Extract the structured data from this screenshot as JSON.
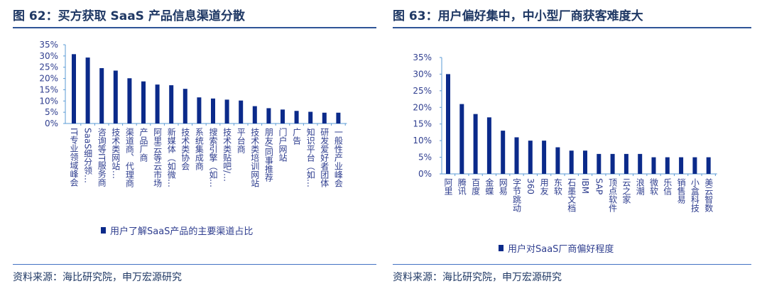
{
  "chart_data": [
    {
      "type": "bar",
      "title": "图 62：买方获取 SaaS 产品信息渠道分散",
      "categories": [
        "IT专业领域峰会",
        "SaaS细分领…",
        "咨询等IT服务商",
        "技术类网站…",
        "渠道商、代理商",
        "产品厂商",
        "阿里云等云市场",
        "新媒体（如微…",
        "技术类协会",
        "系统集成商",
        "搜索引擎（如…",
        "技术类贴吧/…",
        "平台商",
        "技术类培训网站",
        "朋友/同事推荐",
        "门户网站",
        "广告",
        "知识平台（如…",
        "研发爱好者团体",
        "一般性产业峰会"
      ],
      "series": [
        {
          "name": "用户了解SaaS产品的主要渠道占比",
          "values": [
            30.8,
            29.3,
            24.6,
            23.5,
            20.1,
            18.7,
            17.3,
            17.0,
            15.4,
            11.6,
            11.1,
            10.6,
            10.2,
            7.7,
            6.8,
            6.2,
            5.6,
            5.2,
            4.8,
            4.8
          ]
        }
      ],
      "yticks": [
        "0%",
        "5%",
        "10%",
        "15%",
        "20%",
        "25%",
        "30%",
        "35%"
      ],
      "ylim": [
        0,
        35
      ],
      "legend": "bottom",
      "source": "资料来源：海比研究院，申万宏源研究"
    },
    {
      "type": "bar",
      "title": "图 63：用户偏好集中，中小型厂商获客难度大",
      "categories": [
        "阿里",
        "腾讯",
        "百度",
        "金蝶",
        "网易",
        "字节跳动",
        "360",
        "用友",
        "东软",
        "石墨文档",
        "IBM",
        "SAP",
        "顶点软件",
        "云之家",
        "浪潮",
        "微软",
        "乐信",
        "销售易",
        "小盒科技",
        "美云智数"
      ],
      "series": [
        {
          "name": "用户对SaaS厂商偏好程度",
          "values": [
            30,
            21,
            18,
            17,
            13,
            11,
            10,
            10,
            8,
            7,
            7,
            6,
            6,
            6,
            6,
            5,
            5,
            5,
            5,
            5
          ]
        }
      ],
      "yticks": [
        "0%",
        "5%",
        "10%",
        "15%",
        "20%",
        "25%",
        "30%",
        "35%"
      ],
      "ylim": [
        0,
        35
      ],
      "legend": "bottom",
      "source": "资料来源：海比研究院，申万宏源研究"
    }
  ],
  "colors": {
    "bar": "#0b2a8a",
    "axis": "#5b9bd5",
    "title": "#1f3864"
  }
}
